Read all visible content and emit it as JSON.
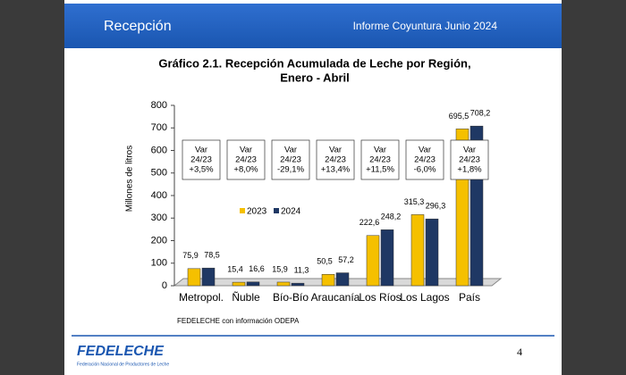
{
  "header": {
    "title": "Recepción",
    "subtitle": "Informe Coyuntura Junio 2024"
  },
  "chart_data": {
    "type": "bar",
    "title": "Gráfico 2.1. Recepción Acumulada de Leche por Región,",
    "subtitle": "Enero - Abril",
    "y_label": "Millones de litros",
    "categories": [
      "Metropol.",
      "Ñuble",
      "Bío-Bío",
      "Araucanía",
      "Los Ríos",
      "Los Lagos",
      "País"
    ],
    "series": [
      {
        "name": "2023",
        "color": "#f5c000",
        "values": [
          75.9,
          15.4,
          15.9,
          50.5,
          222.6,
          315.3,
          695.5
        ],
        "value_labels": [
          "75,9",
          "15,4",
          "15,9",
          "50,5",
          "222,6",
          "315,3",
          "695,5"
        ]
      },
      {
        "name": "2024",
        "color": "#1f3864",
        "values": [
          78.5,
          16.6,
          11.3,
          57.2,
          248.2,
          296.3,
          708.2
        ],
        "value_labels": [
          "78,5",
          "16,6",
          "11,3",
          "57,2",
          "248,2",
          "296,3",
          "708,2"
        ]
      }
    ],
    "ylim": [
      0,
      800
    ],
    "yticks": [
      0,
      100,
      200,
      300,
      400,
      500,
      600,
      700,
      800
    ],
    "annotations": [
      [
        "Var",
        "24/23",
        "+3,5%"
      ],
      [
        "Var",
        "24/23",
        "+8,0%"
      ],
      [
        "Var",
        "24/23",
        "-29,1%"
      ],
      [
        "Var",
        "24/23",
        "+13,4%"
      ],
      [
        "Var",
        "24/23",
        "+11,5%"
      ],
      [
        "Var",
        "24/23",
        "-6,0%"
      ],
      [
        "Var",
        "24/23",
        "+1,8%"
      ]
    ],
    "source": "FEDELECHE con información ODEPA"
  },
  "footer": {
    "logo": "FEDELECHE",
    "logo_caption": "Federación Nacional de Productores de Leche",
    "page": 4
  }
}
